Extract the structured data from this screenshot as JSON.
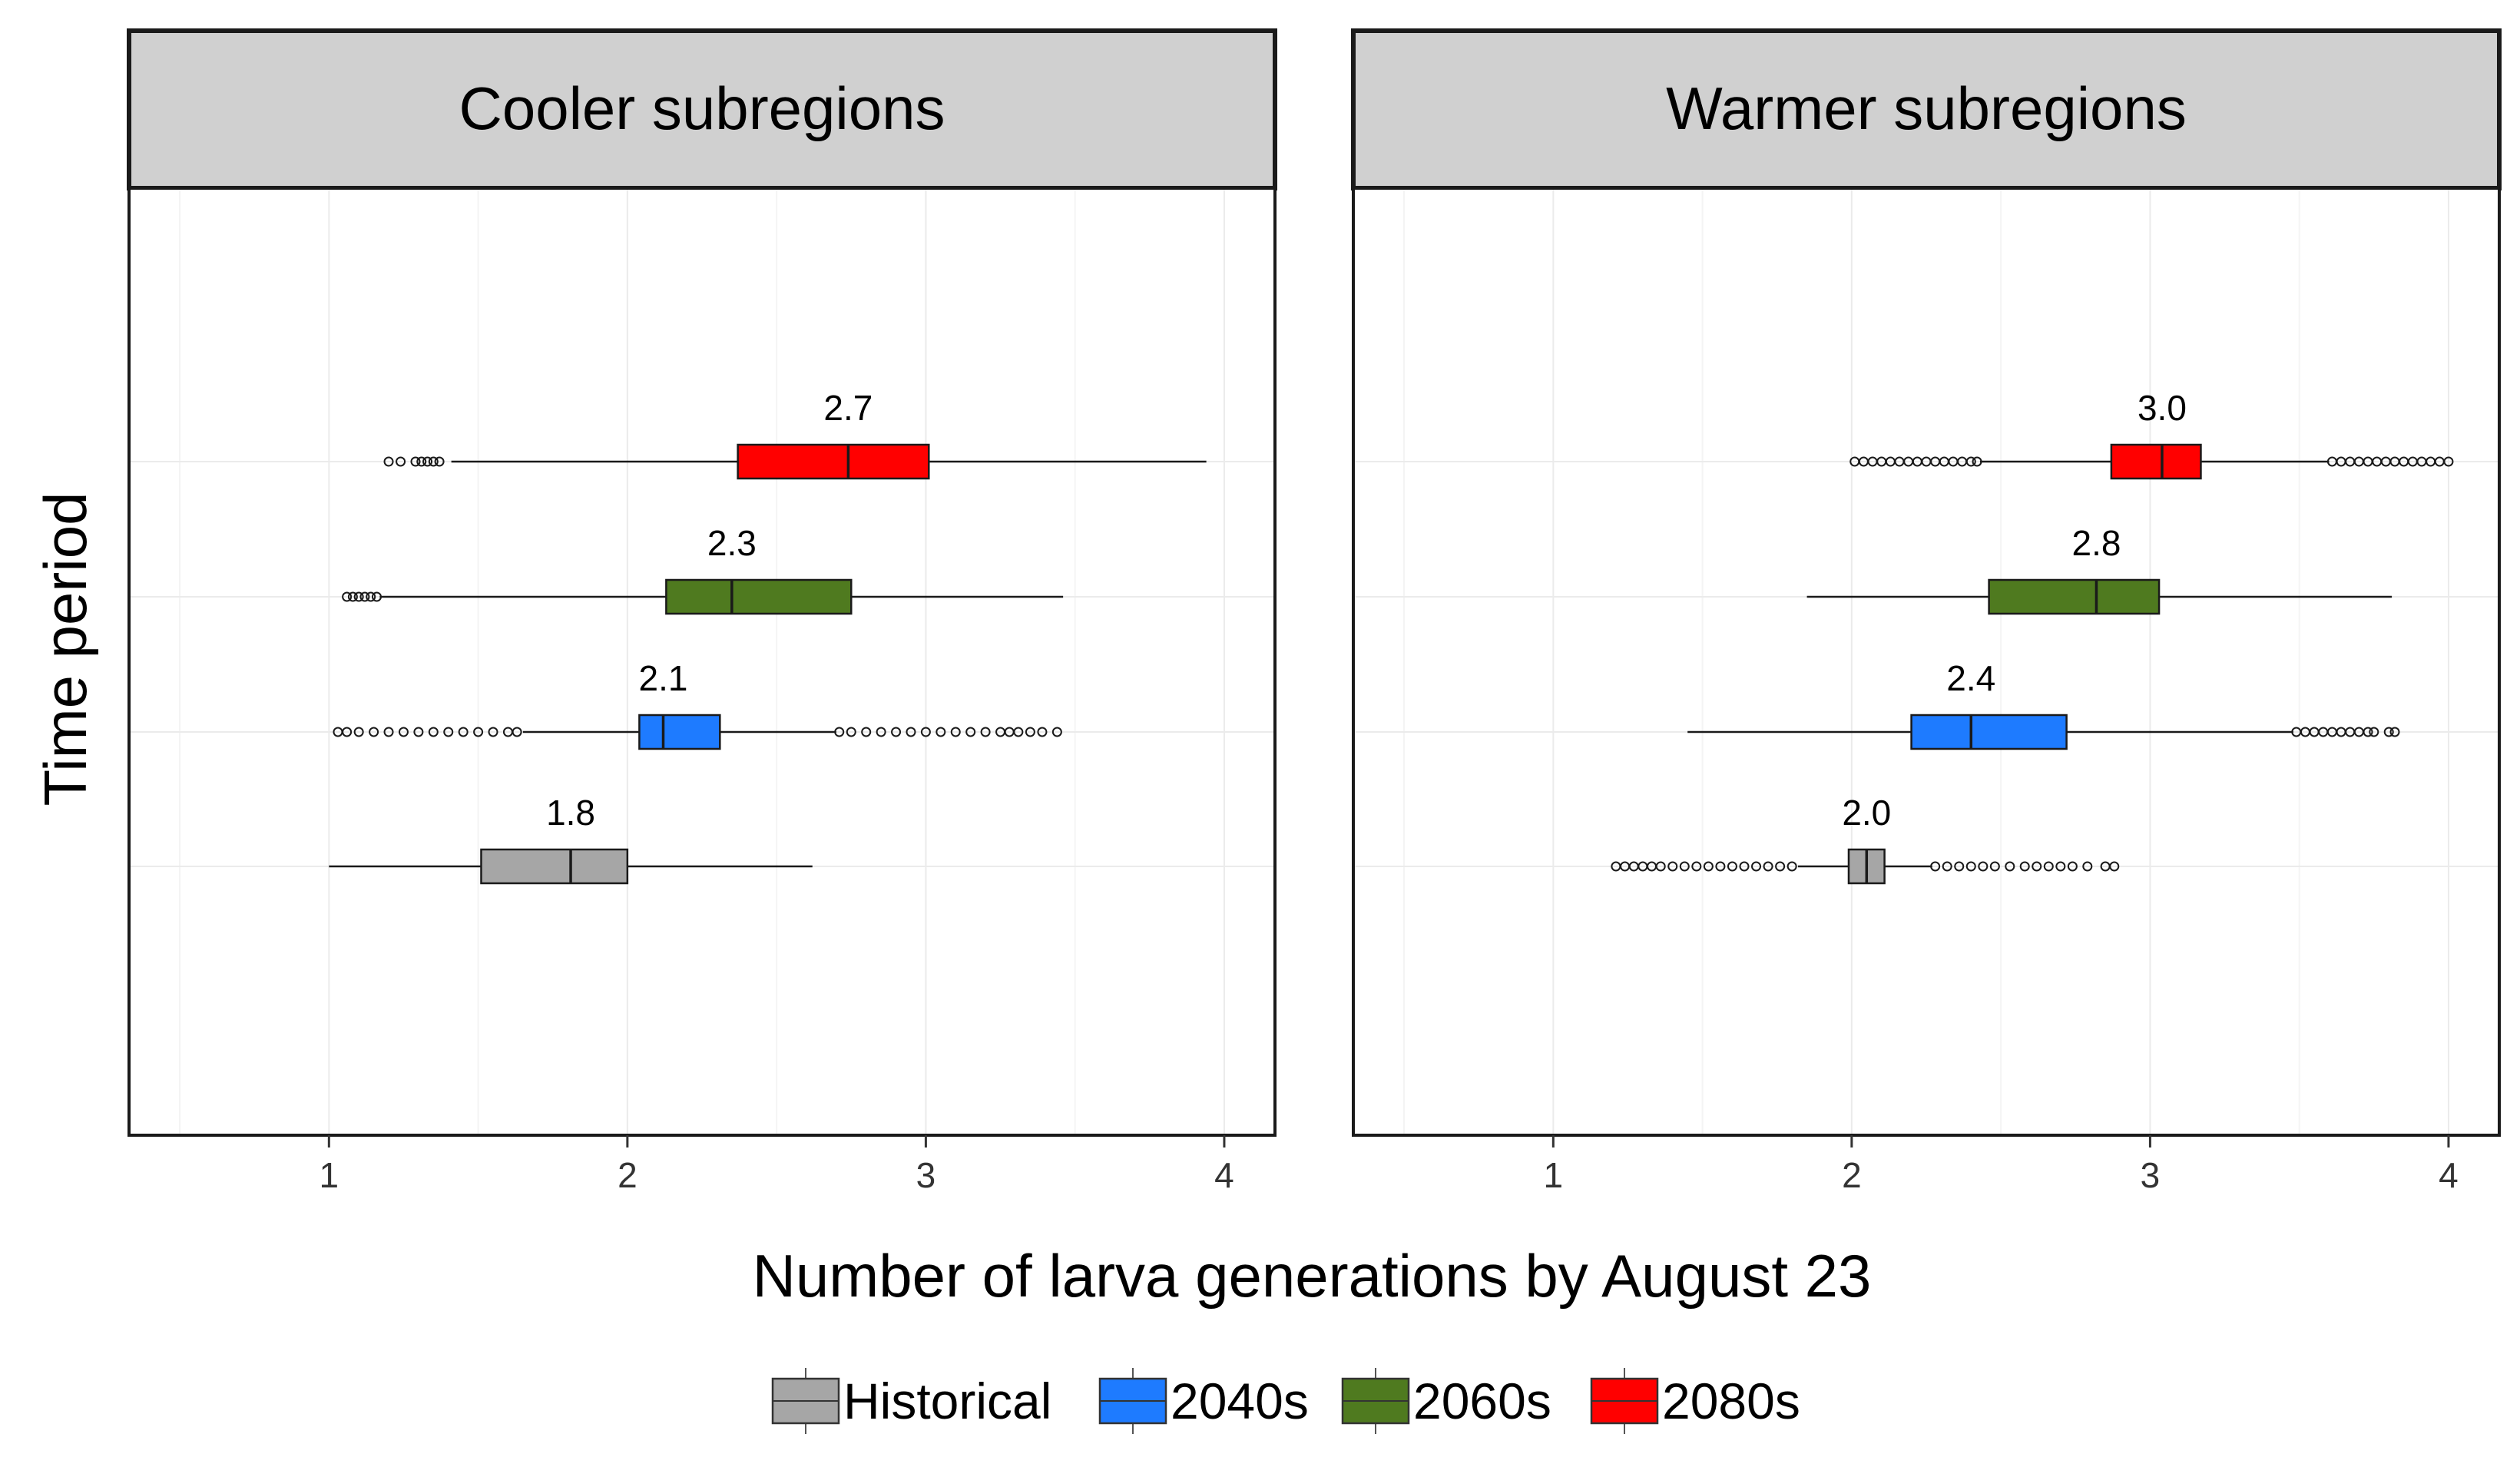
{
  "chart_data": {
    "type": "boxplot",
    "xlabel": "Number of larva generations by August 23",
    "ylabel": "Time period",
    "xlim": [
      0.33,
      4.17
    ],
    "x_ticks": [
      1,
      2,
      3,
      4
    ],
    "grid": true,
    "legend_position": "bottom",
    "legend": [
      {
        "name": "Historical",
        "color": "#A6A6A6"
      },
      {
        "name": "2040s",
        "color": "#1E7BFF"
      },
      {
        "name": "2060s",
        "color": "#4F7A1F"
      },
      {
        "name": "2080s",
        "color": "#FF0000"
      }
    ],
    "panels": [
      {
        "title": "Cooler subregions",
        "boxes": [
          {
            "series": "Historical",
            "whisker_low": 1.0,
            "q1": 1.51,
            "median": 1.81,
            "q3": 2.0,
            "whisker_high": 2.62,
            "median_label": "1.8",
            "outliers_low": [],
            "outliers_high": []
          },
          {
            "series": "2040s",
            "whisker_low": 1.65,
            "q1": 2.04,
            "median": 2.12,
            "q3": 2.31,
            "whisker_high": 2.7,
            "median_label": "2.1",
            "outliers_low": [
              1.03,
              1.06,
              1.1,
              1.15,
              1.2,
              1.25,
              1.3,
              1.35,
              1.4,
              1.45,
              1.5,
              1.55,
              1.6,
              1.63
            ],
            "outliers_high": [
              2.71,
              2.75,
              2.8,
              2.85,
              2.9,
              2.95,
              3.0,
              3.05,
              3.1,
              3.15,
              3.2,
              3.25,
              3.28,
              3.31,
              3.35,
              3.39,
              3.44
            ]
          },
          {
            "series": "2060s",
            "whisker_low": 1.17,
            "q1": 2.13,
            "median": 2.35,
            "q3": 2.75,
            "whisker_high": 3.46,
            "median_label": "2.3",
            "outliers_low": [
              1.06,
              1.08,
              1.1,
              1.12,
              1.14,
              1.16
            ],
            "outliers_high": []
          },
          {
            "series": "2080s",
            "whisker_low": 1.41,
            "q1": 2.37,
            "median": 2.74,
            "q3": 3.01,
            "whisker_high": 3.94,
            "median_label": "2.7",
            "outliers_low": [
              1.2,
              1.24,
              1.29,
              1.31,
              1.33,
              1.35,
              1.37
            ],
            "outliers_high": []
          }
        ]
      },
      {
        "title": "Warmer subregions",
        "boxes": [
          {
            "series": "Historical",
            "whisker_low": 1.82,
            "q1": 1.99,
            "median": 2.05,
            "q3": 2.11,
            "whisker_high": 2.27,
            "median_label": "2.0",
            "outliers_low": [
              1.21,
              1.24,
              1.27,
              1.3,
              1.33,
              1.36,
              1.4,
              1.44,
              1.48,
              1.52,
              1.56,
              1.6,
              1.64,
              1.68,
              1.72,
              1.76,
              1.8
            ],
            "outliers_high": [
              2.28,
              2.32,
              2.36,
              2.4,
              2.44,
              2.48,
              2.53,
              2.58,
              2.62,
              2.66,
              2.7,
              2.74,
              2.79,
              2.85,
              2.88
            ]
          },
          {
            "series": "2040s",
            "whisker_low": 1.45,
            "q1": 2.2,
            "median": 2.4,
            "q3": 2.72,
            "whisker_high": 3.48,
            "median_label": "2.4",
            "outliers_low": [],
            "outliers_high": [
              3.49,
              3.52,
              3.55,
              3.58,
              3.61,
              3.64,
              3.67,
              3.7,
              3.73,
              3.75,
              3.8,
              3.82
            ]
          },
          {
            "series": "2060s",
            "whisker_low": 1.85,
            "q1": 2.46,
            "median": 2.82,
            "q3": 3.03,
            "whisker_high": 3.81,
            "median_label": "2.8",
            "outliers_low": [],
            "outliers_high": []
          },
          {
            "series": "2080s",
            "whisker_low": 2.43,
            "q1": 2.87,
            "median": 3.04,
            "q3": 3.17,
            "whisker_high": 3.6,
            "median_label": "3.0",
            "outliers_low": [
              2.01,
              2.04,
              2.07,
              2.1,
              2.13,
              2.16,
              2.19,
              2.22,
              2.25,
              2.28,
              2.31,
              2.34,
              2.37,
              2.4,
              2.42
            ],
            "outliers_high": [
              3.61,
              3.64,
              3.67,
              3.7,
              3.73,
              3.76,
              3.79,
              3.82,
              3.85,
              3.88,
              3.91,
              3.94,
              3.97,
              4.0
            ]
          }
        ]
      }
    ]
  }
}
